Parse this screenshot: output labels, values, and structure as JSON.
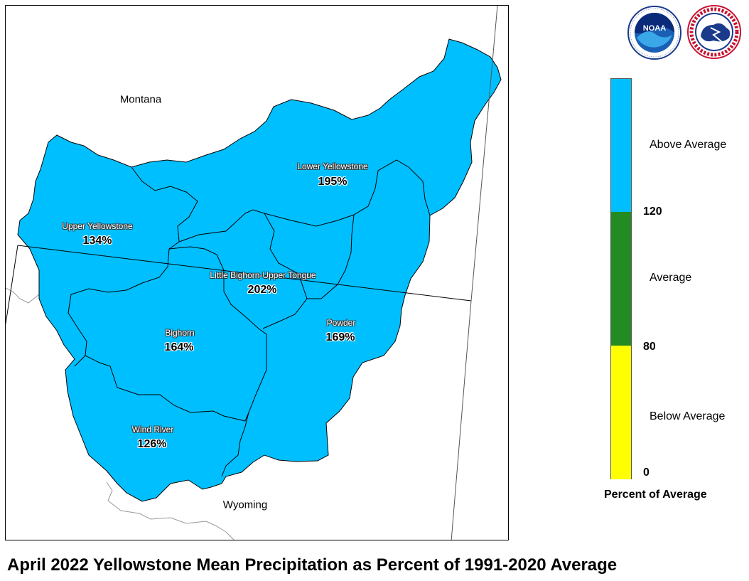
{
  "map": {
    "state_labels": [
      {
        "name": "Montana"
      },
      {
        "name": "Wyoming"
      }
    ],
    "basins": [
      {
        "id": "upper-yellowstone",
        "name": "Upper Yellowstone",
        "percent": "134%"
      },
      {
        "id": "lower-yellowstone",
        "name": "Lower Yellowstone",
        "percent": "195%"
      },
      {
        "id": "little-bighorn-upper-tongue",
        "name": "Little Bighorn-Upper Tongue",
        "percent": "202%"
      },
      {
        "id": "bighorn",
        "name": "Bighorn",
        "percent": "164%"
      },
      {
        "id": "powder",
        "name": "Powder",
        "percent": "169%"
      },
      {
        "id": "wind-river",
        "name": "Wind River",
        "percent": "126%"
      }
    ],
    "fill_color": "#00BFFF"
  },
  "legend": {
    "title": "Percent of Average",
    "categories": [
      {
        "label": "Above Average",
        "color": "#00BFFF",
        "range": [
          120,
          null
        ]
      },
      {
        "label": "Average",
        "color": "#228B22",
        "range": [
          80,
          120
        ]
      },
      {
        "label": "Below Average",
        "color": "#FFFF00",
        "range": [
          0,
          80
        ]
      }
    ],
    "ticks": [
      "120",
      "80",
      "0"
    ]
  },
  "logos": [
    {
      "name": "noaa-logo",
      "text": "NOAA"
    },
    {
      "name": "nws-logo",
      "text": "NATIONAL WEATHER SERVICE"
    }
  ],
  "title": "April 2022 Yellowstone Mean Precipitation as Percent of 1991-2020 Average"
}
